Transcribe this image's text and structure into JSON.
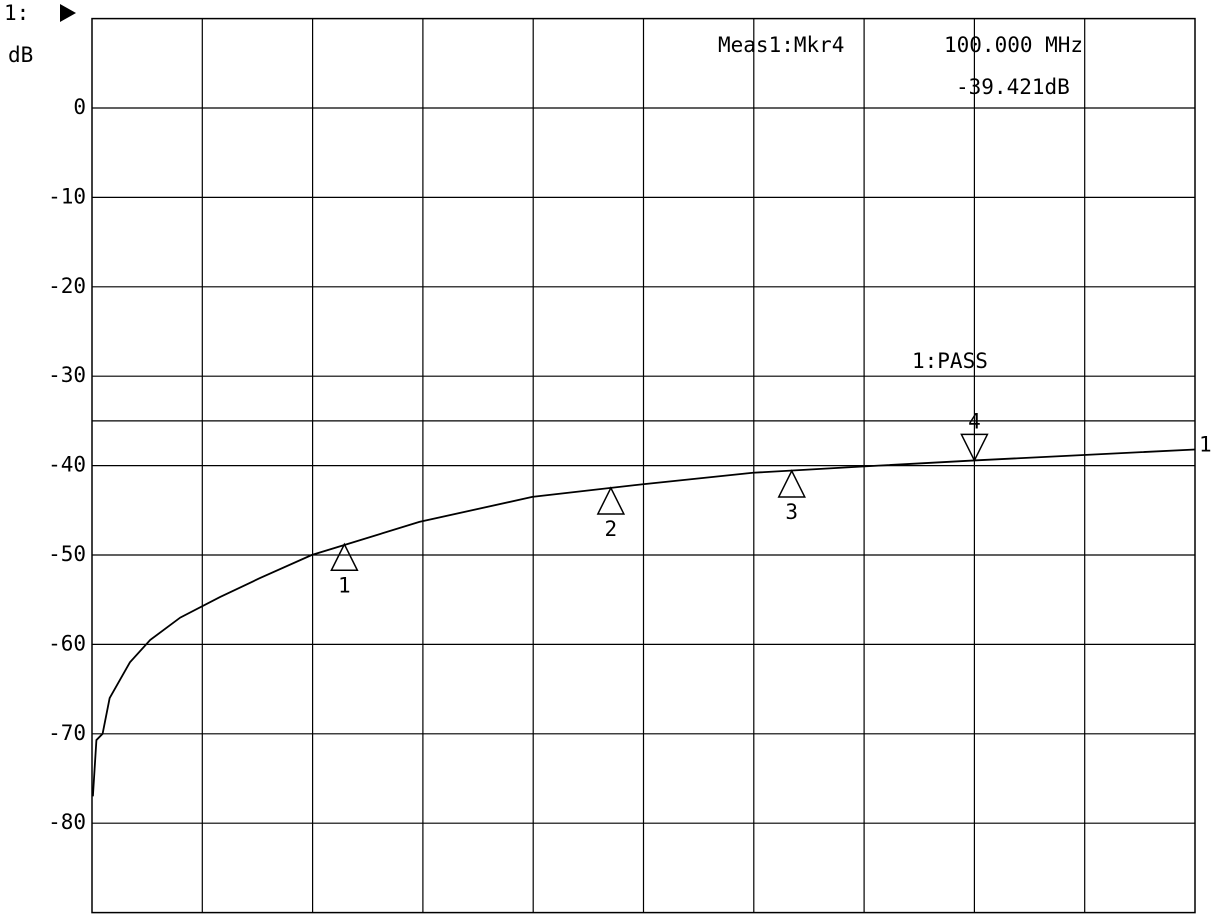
{
  "chart_data": {
    "type": "line",
    "channel": "1:",
    "y_label": "dB",
    "readout": {
      "label": "Meas1:Mkr4",
      "frequency": "100.000 MHz",
      "value": "-39.421dB"
    },
    "limit_status": "1:PASS",
    "limit_line": -35,
    "xlim": [
      0,
      125
    ],
    "ylim": [
      -90,
      10
    ],
    "yticks": [
      0,
      -10,
      -20,
      -30,
      -40,
      -50,
      -60,
      -70,
      -80
    ],
    "grid": true,
    "x_divisions": 10,
    "series": [
      {
        "name": "1",
        "color": "#000000",
        "x": [
          0.1,
          0.5,
          1.2,
          2.0,
          4.3,
          6.6,
          10.0,
          14.5,
          19.0,
          24.9,
          29.2,
          37.1,
          49.9,
          62.3,
          74.9,
          87.3,
          100,
          125
        ],
        "values": [
          -77,
          -70.7,
          -70,
          -66,
          -62,
          -59.5,
          -57,
          -54.7,
          -52.6,
          -50,
          -48.7,
          -46.3,
          -43.5,
          -42.1,
          -40.8,
          -40.1,
          -39.421,
          -38.2
        ]
      }
    ],
    "markers": [
      {
        "label": "1",
        "x": 28.6,
        "y": -48.8,
        "direction": "up"
      },
      {
        "label": "2",
        "x": 58.8,
        "y": -42.5,
        "direction": "up"
      },
      {
        "label": "3",
        "x": 79.3,
        "y": -40.6,
        "direction": "up"
      },
      {
        "label": "4",
        "x": 100,
        "y": -39.421,
        "direction": "down"
      }
    ]
  }
}
